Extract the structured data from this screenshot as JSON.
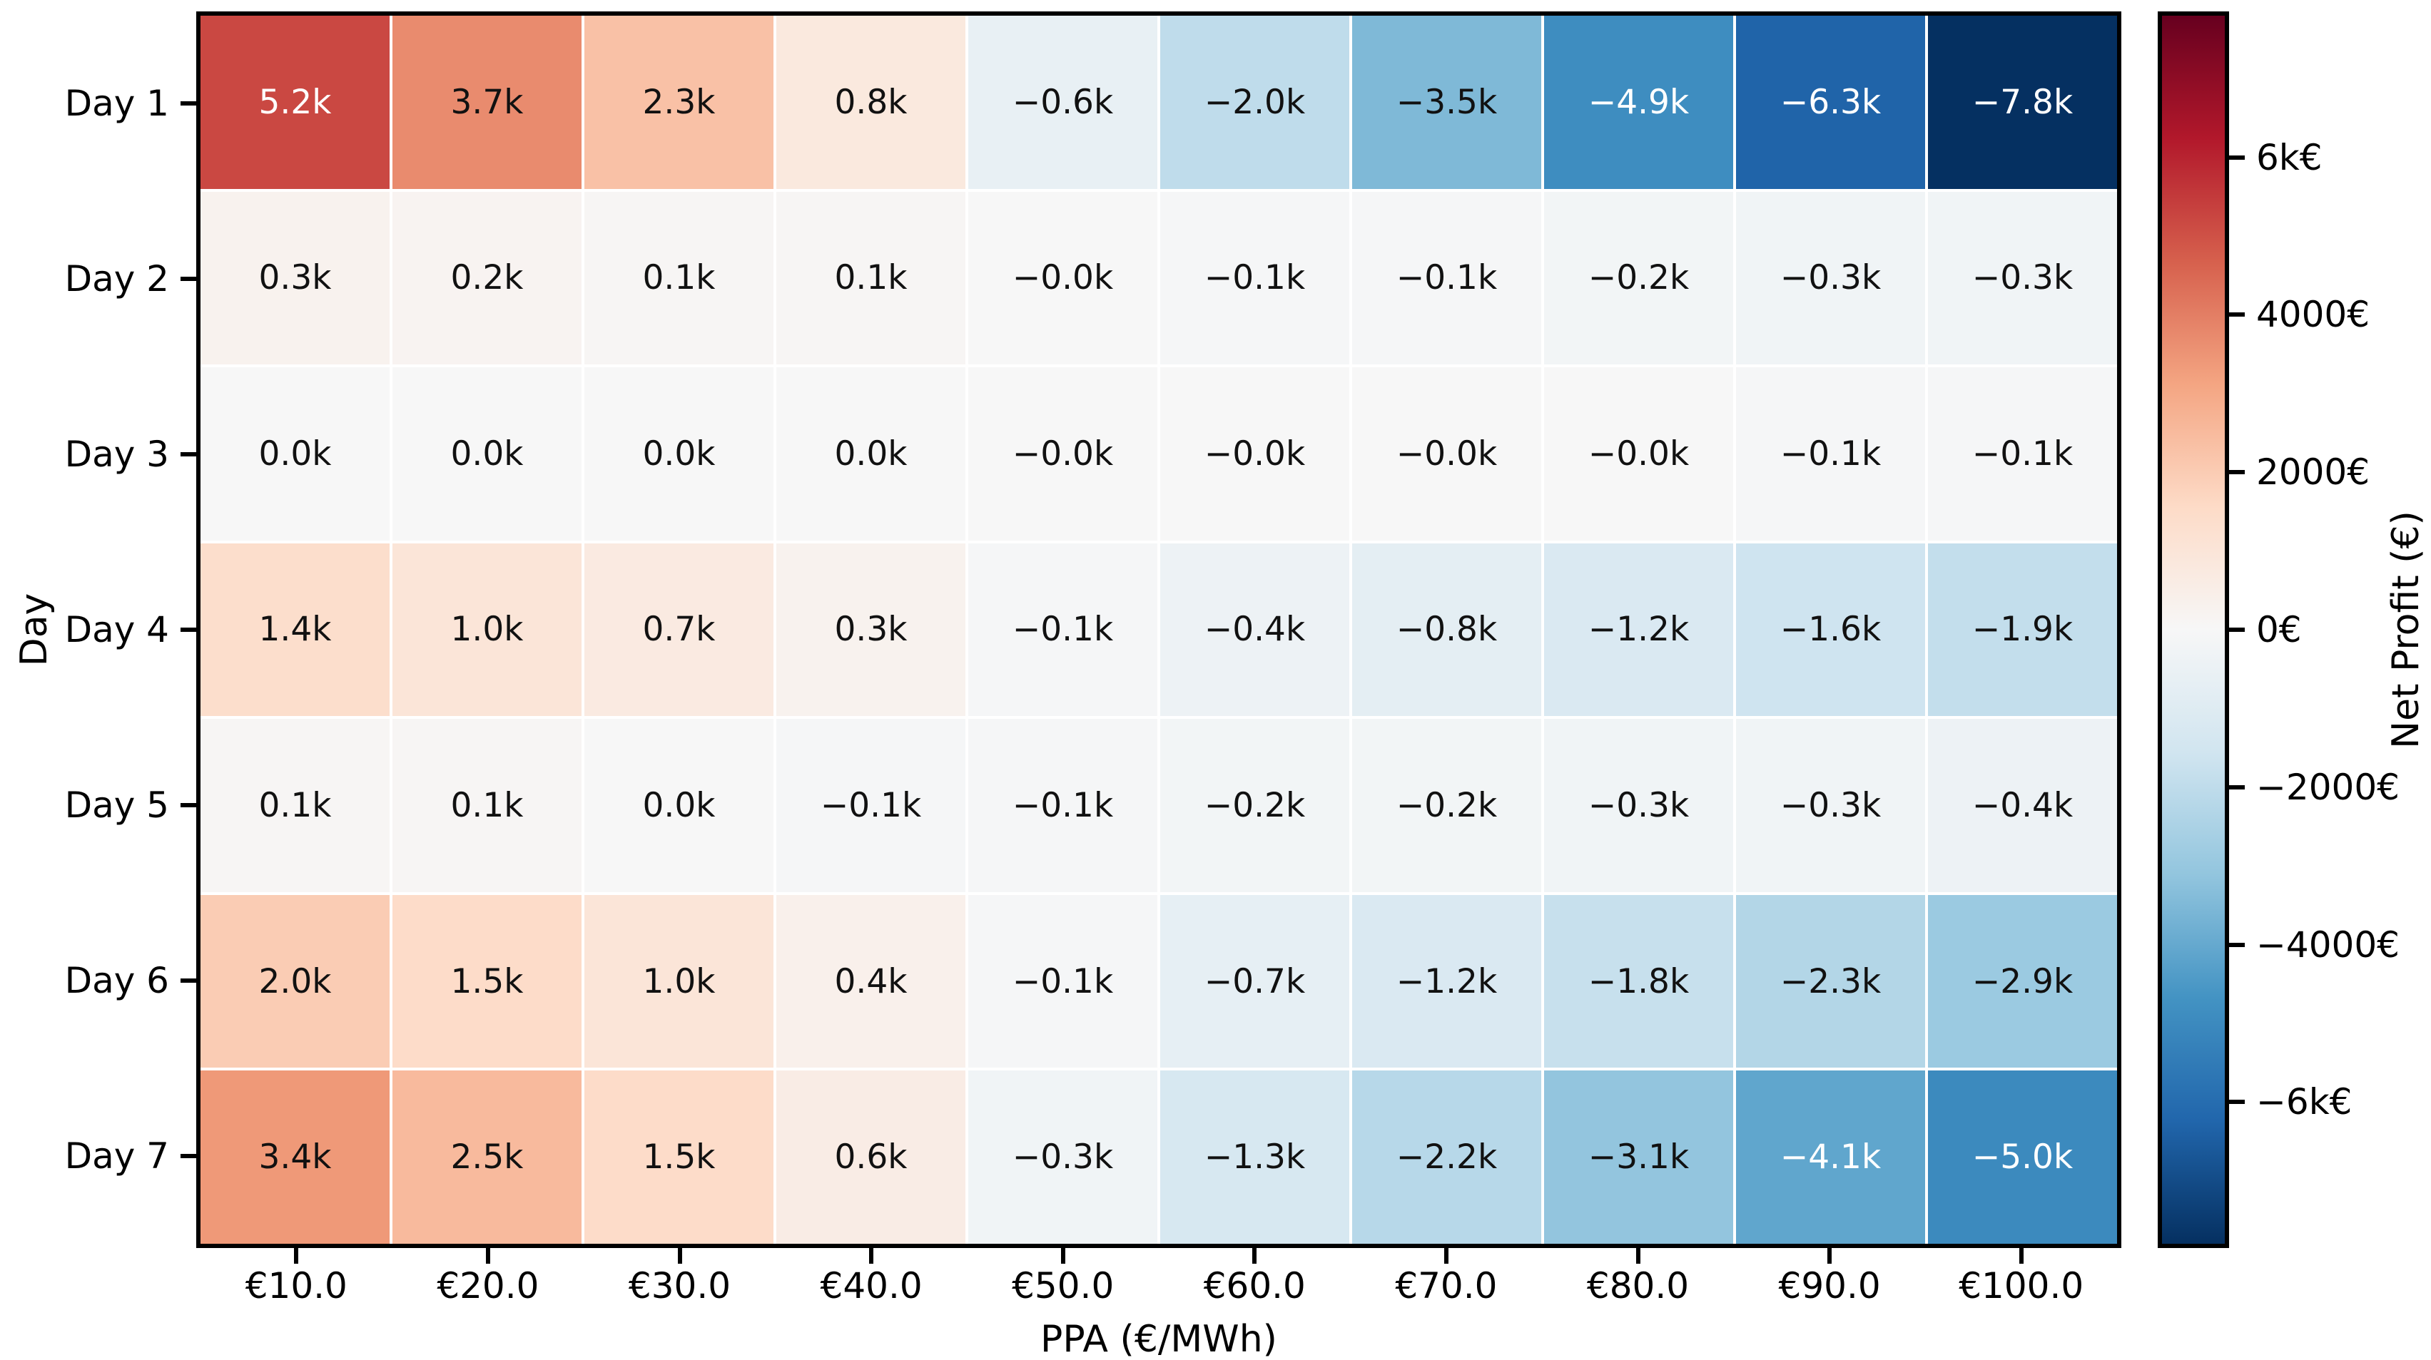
{
  "chart_data": {
    "type": "heatmap",
    "title": "",
    "xlabel": "PPA (€/MWh)",
    "ylabel": "Day",
    "colorbar_label": "Net Profit (€)",
    "x_ticklabels": [
      "€10.0",
      "€20.0",
      "€30.0",
      "€40.0",
      "€50.0",
      "€60.0",
      "€70.0",
      "€80.0",
      "€90.0",
      "€100.0"
    ],
    "y_ticklabels": [
      "Day 1",
      "Day 2",
      "Day 3",
      "Day 4",
      "Day 5",
      "Day 6",
      "Day 7"
    ],
    "cell_labels": [
      [
        "5.2k",
        "3.7k",
        "2.3k",
        "0.8k",
        "−0.6k",
        "−2.0k",
        "−3.5k",
        "−4.9k",
        "−6.3k",
        "−7.8k"
      ],
      [
        "0.3k",
        "0.2k",
        "0.1k",
        "0.1k",
        "−0.0k",
        "−0.1k",
        "−0.1k",
        "−0.2k",
        "−0.3k",
        "−0.3k"
      ],
      [
        "0.0k",
        "0.0k",
        "0.0k",
        "0.0k",
        "−0.0k",
        "−0.0k",
        "−0.0k",
        "−0.0k",
        "−0.1k",
        "−0.1k"
      ],
      [
        "1.4k",
        "1.0k",
        "0.7k",
        "0.3k",
        "−0.1k",
        "−0.4k",
        "−0.8k",
        "−1.2k",
        "−1.6k",
        "−1.9k"
      ],
      [
        "0.1k",
        "0.1k",
        "0.0k",
        "−0.1k",
        "−0.1k",
        "−0.2k",
        "−0.2k",
        "−0.3k",
        "−0.3k",
        "−0.4k"
      ],
      [
        "2.0k",
        "1.5k",
        "1.0k",
        "0.4k",
        "−0.1k",
        "−0.7k",
        "−1.2k",
        "−1.8k",
        "−2.3k",
        "−2.9k"
      ],
      [
        "3.4k",
        "2.5k",
        "1.5k",
        "0.6k",
        "−0.3k",
        "−1.3k",
        "−2.2k",
        "−3.1k",
        "−4.1k",
        "−5.0k"
      ]
    ],
    "values_eur": [
      [
        5200,
        3700,
        2300,
        800,
        -600,
        -2000,
        -3500,
        -4900,
        -6300,
        -7800
      ],
      [
        300,
        200,
        100,
        100,
        0,
        -100,
        -100,
        -200,
        -300,
        -300
      ],
      [
        0,
        0,
        0,
        0,
        0,
        0,
        0,
        0,
        -100,
        -100
      ],
      [
        1400,
        1000,
        700,
        300,
        -100,
        -400,
        -800,
        -1200,
        -1600,
        -1900
      ],
      [
        100,
        100,
        0,
        -100,
        -100,
        -200,
        -200,
        -300,
        -300,
        -400
      ],
      [
        2000,
        1500,
        1000,
        400,
        -100,
        -700,
        -1200,
        -1800,
        -2300,
        -2900
      ],
      [
        3400,
        2500,
        1500,
        600,
        -300,
        -1300,
        -2200,
        -3100,
        -4100,
        -5000
      ]
    ],
    "vmin": -7800,
    "vmax": 7800,
    "colormap": {
      "name": "RdBu_r",
      "stops": [
        "#053061",
        "#2166ac",
        "#4393c3",
        "#92c5de",
        "#d1e5f0",
        "#f7f7f7",
        "#fddbc7",
        "#f4a582",
        "#d6604d",
        "#b2182b",
        "#67001f"
      ]
    },
    "colorbar_ticks": [
      {
        "value": 6000,
        "label": "6k€"
      },
      {
        "value": 4000,
        "label": "4000€"
      },
      {
        "value": 2000,
        "label": "2000€"
      },
      {
        "value": 0,
        "label": "0€"
      },
      {
        "value": -2000,
        "label": "−2000€"
      },
      {
        "value": -4000,
        "label": "−4000€"
      },
      {
        "value": -6000,
        "label": "−6k€"
      }
    ],
    "colors": {
      "annotation_dark": "#111111",
      "annotation_light": "#ffffff",
      "gridline": "#ffffff",
      "spine": "#000000",
      "background": "#ffffff"
    },
    "grid_on": true,
    "legend_position": "colorbar-right"
  }
}
